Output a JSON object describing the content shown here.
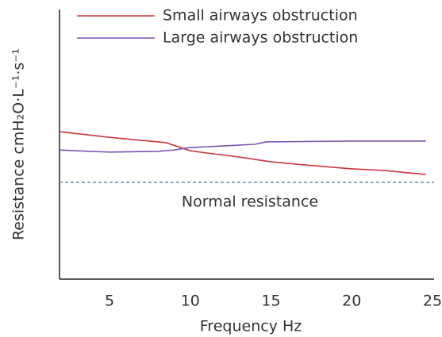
{
  "chart_data": {
    "type": "line",
    "xlabel": "Frequency Hz",
    "ylabel": "Resistance cmH₂O·L⁻¹·s⁻¹",
    "xlim": [
      1.9,
      25.1
    ],
    "xticks": [
      5,
      10,
      15,
      20,
      25
    ],
    "ylim": [
      0,
      10
    ],
    "series": [
      {
        "name": "Small airways obstruction",
        "color": "#c8373f",
        "x": [
          1.9,
          5,
          8.5,
          10,
          11,
          13,
          15,
          17,
          20,
          22,
          24.6
        ],
        "values": [
          5.47,
          5.26,
          5.06,
          4.76,
          4.68,
          4.53,
          4.35,
          4.24,
          4.09,
          4.03,
          3.88
        ]
      },
      {
        "name": "Large airways obstruction",
        "color": "#7b54b0",
        "x": [
          1.9,
          5,
          8,
          9,
          10,
          12,
          14,
          14.7,
          20,
          24.6
        ],
        "values": [
          4.79,
          4.71,
          4.74,
          4.79,
          4.88,
          4.94,
          5.0,
          5.09,
          5.12,
          5.12
        ]
      }
    ],
    "reference_line": {
      "value": 3.59,
      "label": "Normal resistance",
      "color": "#5a7fa8"
    },
    "legend": "top"
  }
}
